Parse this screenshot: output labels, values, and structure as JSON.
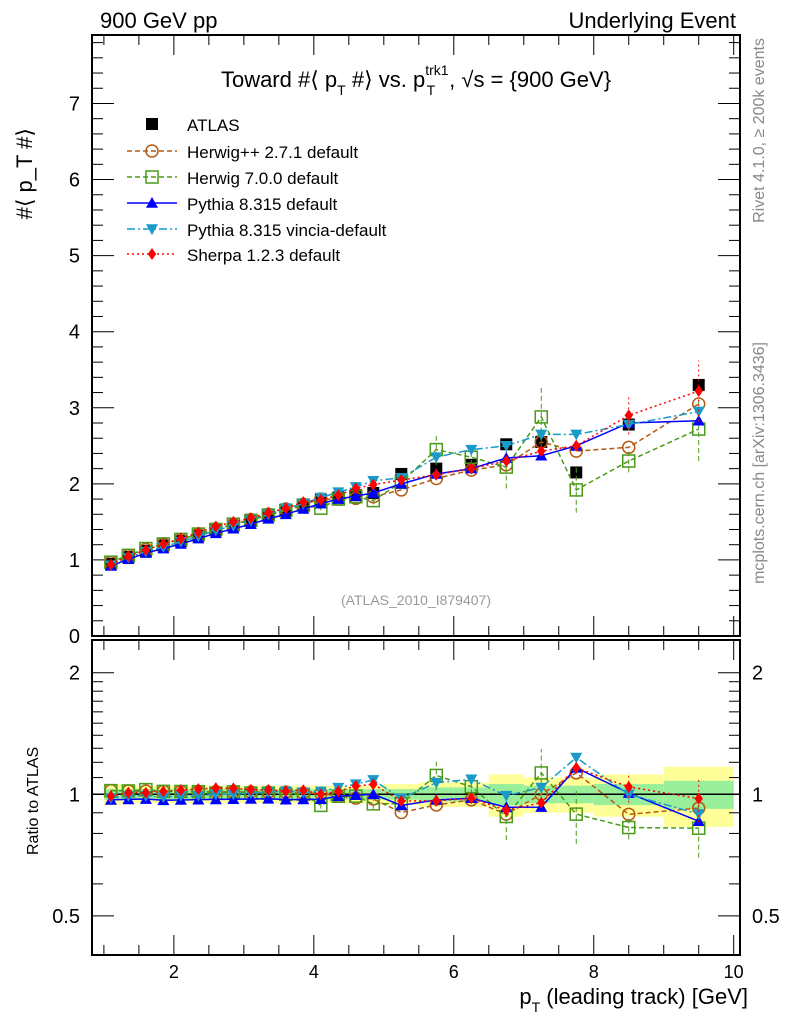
{
  "header": {
    "left": "900 GeV pp",
    "right": "Underlying Event"
  },
  "side_labels": {
    "rivet": "Rivet 4.1.0, ≥ 200k events",
    "mcplots": "mcplots.cern.ch [arXiv:1306.3436]"
  },
  "chart_data": {
    "type": "scatter",
    "title": "Toward #⟨ p_T #⟩ vs. p_T^trk1, √s = {900 GeV}",
    "title_parts": {
      "a": "Toward #⟨ p",
      "a_sub": "T",
      "b": " #⟩ vs. p",
      "b_sup": "trk1",
      "b_sub": "T",
      "c": ", √s = {900 GeV}"
    },
    "ylabel": "#⟨ p_T #⟩",
    "ylabel_parts": {
      "main": "#⟨ p",
      "sub": "T",
      "end": " #⟩"
    },
    "xlabel": "p_T (leading track) [GeV]",
    "xlabel_parts": {
      "main": "p",
      "sub": "T",
      "end": " (leading track) [GeV]"
    },
    "ratio_ylabel": "Ratio to ATLAS",
    "analysis_tag": "(ATLAS_2010_I879407)",
    "xlim": [
      0.83,
      10.09
    ],
    "ylim": [
      0,
      7.9
    ],
    "ratio_ylim": [
      0.4,
      2.41
    ],
    "ratio_scale": "log",
    "x_ticks": [
      2,
      4,
      6,
      8,
      10
    ],
    "y_ticks": [
      0,
      1,
      2,
      3,
      4,
      5,
      6,
      7
    ],
    "ratio_ticks": [
      0.5,
      1,
      2
    ],
    "legend_position": "top-left",
    "x": [
      1.1,
      1.35,
      1.6,
      1.85,
      2.1,
      2.35,
      2.6,
      2.85,
      3.1,
      3.35,
      3.6,
      3.85,
      4.1,
      4.35,
      4.6,
      4.85,
      5.25,
      5.75,
      6.25,
      6.75,
      7.25,
      7.75,
      8.5,
      9.5
    ],
    "bin_edges": [
      1.0,
      1.25,
      1.5,
      1.75,
      2.0,
      2.25,
      2.5,
      2.75,
      3.0,
      3.25,
      3.5,
      3.75,
      4.0,
      4.25,
      4.5,
      4.75,
      5.0,
      5.5,
      6.0,
      6.5,
      7.0,
      7.5,
      8.0,
      9.0,
      10.0
    ],
    "data": {
      "name": "ATLAS",
      "color": "#000000",
      "values": [
        0.95,
        1.04,
        1.12,
        1.19,
        1.25,
        1.32,
        1.39,
        1.45,
        1.51,
        1.58,
        1.65,
        1.72,
        1.79,
        1.82,
        1.85,
        1.88,
        2.13,
        2.2,
        2.25,
        2.52,
        2.55,
        2.15,
        2.78,
        3.3
      ],
      "band_total": [
        0.06,
        0.05,
        0.05,
        0.05,
        0.05,
        0.05,
        0.05,
        0.05,
        0.05,
        0.05,
        0.05,
        0.05,
        0.05,
        0.05,
        0.05,
        0.05,
        0.06,
        0.07,
        0.07,
        0.12,
        0.1,
        0.1,
        0.12,
        0.17
      ],
      "band_stat": [
        0.03,
        0.03,
        0.03,
        0.03,
        0.03,
        0.03,
        0.03,
        0.03,
        0.03,
        0.03,
        0.03,
        0.03,
        0.03,
        0.03,
        0.03,
        0.03,
        0.03,
        0.04,
        0.04,
        0.06,
        0.05,
        0.05,
        0.06,
        0.08
      ]
    },
    "series": [
      {
        "name": "Herwig++ 2.7.1 default",
        "color": "#b35a10",
        "marker": "open-circle",
        "dash": "5,3",
        "values": [
          0.97,
          1.06,
          1.14,
          1.21,
          1.27,
          1.34,
          1.41,
          1.47,
          1.53,
          1.6,
          1.67,
          1.73,
          1.8,
          1.8,
          1.81,
          1.83,
          1.92,
          2.07,
          2.18,
          2.25,
          2.55,
          2.43,
          2.48,
          3.05
        ]
      },
      {
        "name": "Herwig 7.0.0 default",
        "color": "#4a9a1a",
        "marker": "open-square",
        "dash": "5,3",
        "values": [
          0.97,
          1.06,
          1.15,
          1.21,
          1.27,
          1.34,
          1.4,
          1.47,
          1.52,
          1.59,
          1.65,
          1.72,
          1.68,
          1.8,
          1.83,
          1.78,
          2.02,
          2.45,
          2.35,
          2.22,
          2.88,
          1.92,
          2.3,
          2.72
        ],
        "errors": [
          0,
          0,
          0,
          0,
          0,
          0,
          0,
          0,
          0,
          0,
          0,
          0,
          0.03,
          0,
          0,
          0.05,
          0,
          0.2,
          0.1,
          0.28,
          0.42,
          0.3,
          0.15,
          0.42
        ]
      },
      {
        "name": "Pythia 8.315 default",
        "color": "#0000ff",
        "marker": "triangle-up",
        "dash": "",
        "values": [
          0.92,
          1.01,
          1.09,
          1.15,
          1.21,
          1.28,
          1.35,
          1.41,
          1.47,
          1.54,
          1.6,
          1.67,
          1.74,
          1.8,
          1.84,
          1.88,
          2.0,
          2.13,
          2.2,
          2.34,
          2.37,
          2.5,
          2.8,
          2.83
        ]
      },
      {
        "name": "Pythia 8.315 vincia-default",
        "color": "#1a9ac8",
        "marker": "triangle-down",
        "dash": "8,3,2,3",
        "values": [
          0.93,
          1.03,
          1.11,
          1.17,
          1.24,
          1.31,
          1.39,
          1.45,
          1.52,
          1.6,
          1.68,
          1.74,
          1.82,
          1.89,
          1.96,
          2.04,
          2.08,
          2.35,
          2.45,
          2.5,
          2.65,
          2.65,
          2.78,
          2.95
        ]
      },
      {
        "name": "Sherpa 1.2.3 default",
        "color": "#ff0000",
        "marker": "diamond",
        "dash": "2,3",
        "values": [
          0.94,
          1.05,
          1.13,
          1.21,
          1.28,
          1.36,
          1.44,
          1.5,
          1.55,
          1.62,
          1.68,
          1.76,
          1.79,
          1.85,
          1.94,
          1.99,
          2.05,
          2.12,
          2.2,
          2.3,
          2.43,
          2.5,
          2.9,
          3.22
        ],
        "errors": [
          0,
          0,
          0,
          0,
          0,
          0,
          0,
          0,
          0,
          0,
          0,
          0,
          0,
          0,
          0,
          0,
          0,
          0,
          0,
          0,
          0,
          0,
          0.25,
          0.4
        ]
      }
    ]
  }
}
